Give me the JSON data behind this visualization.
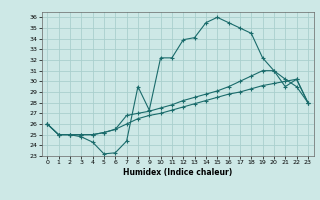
{
  "title": "",
  "xlabel": "Humidex (Indice chaleur)",
  "xlim": [
    -0.5,
    23.5
  ],
  "ylim": [
    23,
    36.5
  ],
  "xticks": [
    0,
    1,
    2,
    3,
    4,
    5,
    6,
    7,
    8,
    9,
    10,
    11,
    12,
    13,
    14,
    15,
    16,
    17,
    18,
    19,
    20,
    21,
    22,
    23
  ],
  "yticks": [
    23,
    24,
    25,
    26,
    27,
    28,
    29,
    30,
    31,
    32,
    33,
    34,
    35,
    36
  ],
  "background_color": "#cde8e6",
  "grid_color": "#aacfcd",
  "line_color": "#1a6b6b",
  "line1_x": [
    0,
    1,
    2,
    3,
    4,
    5,
    6,
    7,
    8,
    9,
    10,
    11,
    12,
    13,
    14,
    15,
    16,
    17,
    18,
    19,
    20,
    21,
    22,
    23
  ],
  "line1_y": [
    26.0,
    25.0,
    25.0,
    24.8,
    24.3,
    23.2,
    23.3,
    24.4,
    29.5,
    27.3,
    32.2,
    32.2,
    33.9,
    34.1,
    35.5,
    36.0,
    35.5,
    35.0,
    34.5,
    32.2,
    31.0,
    29.5,
    30.2,
    28.0
  ],
  "line2_x": [
    0,
    1,
    2,
    3,
    4,
    5,
    6,
    7,
    8,
    9,
    10,
    11,
    12,
    13,
    14,
    15,
    16,
    17,
    18,
    19,
    20,
    21,
    22,
    23
  ],
  "line2_y": [
    26.0,
    25.0,
    25.0,
    25.0,
    25.0,
    25.2,
    25.5,
    26.8,
    27.0,
    27.2,
    27.5,
    27.8,
    28.2,
    28.5,
    28.8,
    29.1,
    29.5,
    30.0,
    30.5,
    31.0,
    31.0,
    30.2,
    29.5,
    28.0
  ],
  "line3_x": [
    0,
    1,
    2,
    3,
    4,
    5,
    6,
    7,
    8,
    9,
    10,
    11,
    12,
    13,
    14,
    15,
    16,
    17,
    18,
    19,
    20,
    21,
    22,
    23
  ],
  "line3_y": [
    26.0,
    25.0,
    25.0,
    25.0,
    25.0,
    25.2,
    25.5,
    26.0,
    26.5,
    26.8,
    27.0,
    27.3,
    27.6,
    27.9,
    28.2,
    28.5,
    28.8,
    29.0,
    29.3,
    29.6,
    29.8,
    30.0,
    30.2,
    28.0
  ]
}
